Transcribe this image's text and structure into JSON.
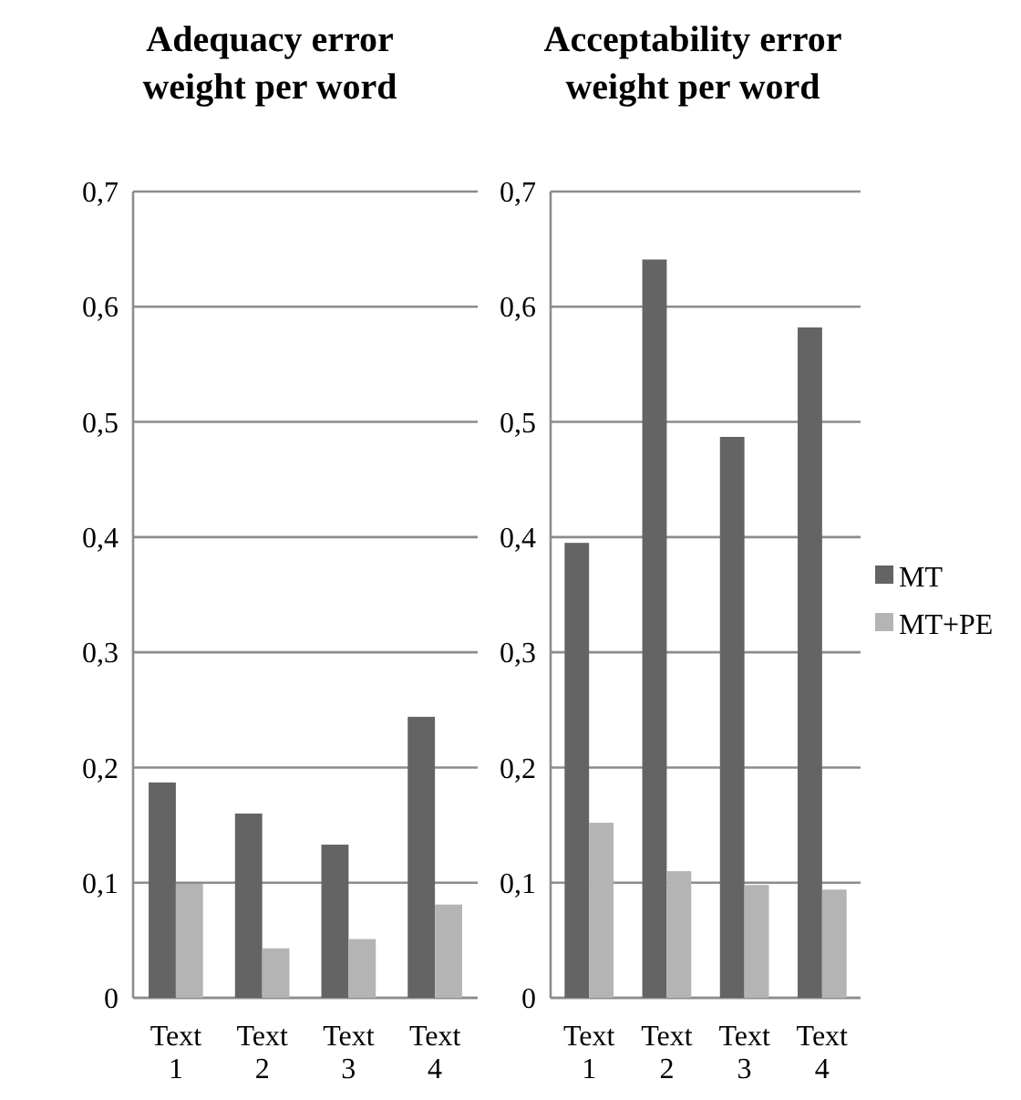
{
  "chart_data": [
    {
      "type": "bar",
      "title": "Adequacy error weight per word",
      "categories": [
        "Text 1",
        "Text 2",
        "Text 3",
        "Text 4"
      ],
      "series": [
        {
          "color": "#646464",
          "values": [
            0.187,
            0.16,
            0.133,
            0.244
          ]
        },
        {
          "color": "#b4b4b4",
          "values": [
            0.099,
            0.043,
            0.051,
            0.081
          ]
        }
      ],
      "ylim": [
        0,
        0.7
      ],
      "yticks": [
        {
          "value": 0,
          "label": "0"
        },
        {
          "value": 0.1,
          "label": "0,1"
        },
        {
          "value": 0.2,
          "label": "0,2"
        },
        {
          "value": 0.3,
          "label": "0,3"
        },
        {
          "value": 0.4,
          "label": "0,4"
        },
        {
          "value": 0.5,
          "label": "0,5"
        },
        {
          "value": 0.6,
          "label": "0,6"
        },
        {
          "value": 0.7,
          "label": "0,7"
        }
      ],
      "grid": "y"
    },
    {
      "type": "bar",
      "title": "Acceptability error weight per word",
      "categories": [
        "Text 1",
        "Text 2",
        "Text 3",
        "Text 4"
      ],
      "series": [
        {
          "name": "MT",
          "color": "#646464",
          "values": [
            0.395,
            0.641,
            0.487,
            0.582
          ]
        },
        {
          "name": "MT+PE",
          "color": "#b4b4b4",
          "values": [
            0.152,
            0.11,
            0.098,
            0.094
          ]
        }
      ],
      "ylim": [
        0,
        0.7
      ],
      "yticks": [
        {
          "value": 0,
          "label": "0"
        },
        {
          "value": 0.1,
          "label": "0,1"
        },
        {
          "value": 0.2,
          "label": "0,2"
        },
        {
          "value": 0.3,
          "label": "0,3"
        },
        {
          "value": 0.4,
          "label": "0,4"
        },
        {
          "value": 0.5,
          "label": "0,5"
        },
        {
          "value": 0.6,
          "label": "0,6"
        },
        {
          "value": 0.7,
          "label": "0,7"
        }
      ],
      "grid": "y",
      "legend": "right"
    }
  ]
}
